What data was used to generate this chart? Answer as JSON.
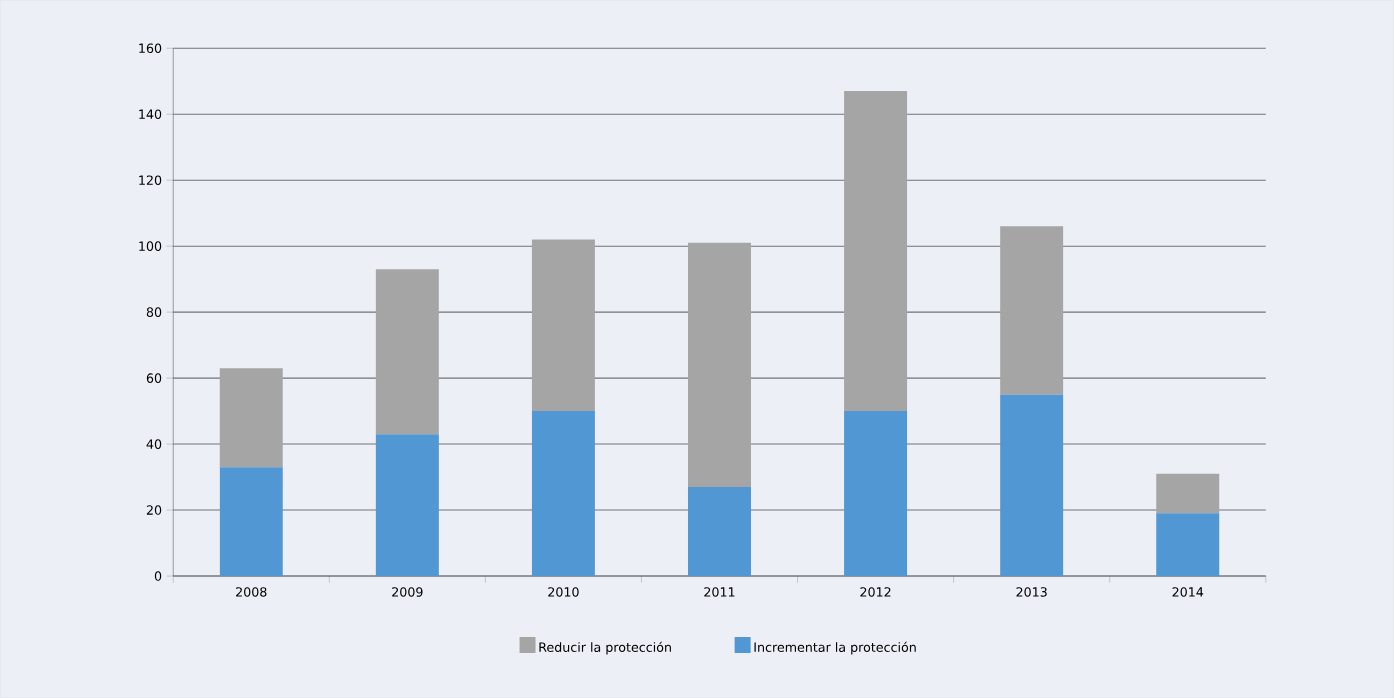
{
  "chart_data": {
    "type": "bar",
    "stacked": true,
    "categories": [
      "2008",
      "2009",
      "2010",
      "2011",
      "2012",
      "2013",
      "2014"
    ],
    "series": [
      {
        "name": "Incrementar la protección",
        "color": "#5097d3",
        "values": [
          33,
          43,
          50,
          27,
          50,
          55,
          19
        ]
      },
      {
        "name": "Reducir la protección",
        "color": "#a5a5a5",
        "values": [
          30,
          50,
          52,
          74,
          97,
          51,
          12
        ]
      }
    ],
    "ylim": [
      0,
      160
    ],
    "yticks": [
      0,
      20,
      40,
      60,
      80,
      100,
      120,
      140,
      160
    ],
    "grid": "y",
    "legend": "bottom"
  }
}
